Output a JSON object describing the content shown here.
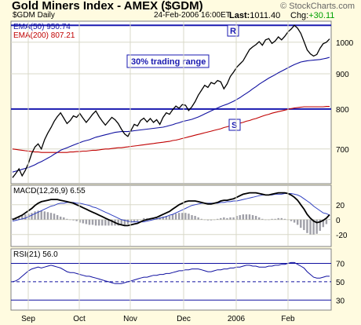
{
  "header": {
    "title": "Gold Miners Index - AMEX ($GDM)",
    "copyright": "© StockCharts.com",
    "symbol_label": "$GDM Daily",
    "date": "24-Feb-2006 16:00ET",
    "last_label": "Last:",
    "last_value": "1011.40",
    "chg_label": "Chg:",
    "chg_value": "+30.11"
  },
  "legend": {
    "ema50": "EMA(50) 950.74",
    "ema200": "EMA(200) 807.21"
  },
  "annotations": {
    "r_label": "R",
    "s_label": "S",
    "range_label": "30% trading range"
  },
  "colors": {
    "background": "#fffbe0",
    "plot_bg": "#ffffff",
    "grid": "#d8d8c8",
    "price": "#000000",
    "ema50": "#1010a0",
    "ema200": "#c00000",
    "support_resistance": "#1a1ab0",
    "macd": "#000000",
    "macd_signal": "#3040c0",
    "macd_hist": "#a0a0a8",
    "rsi": "#1010a0",
    "rsi_bands": "#1010a0"
  },
  "chart_data": [
    {
      "type": "line",
      "panel": "price",
      "ylim": [
        625,
        1070
      ],
      "log_scale": true,
      "y_ticks": [
        700,
        800,
        900,
        1000
      ],
      "x_labels": [
        "Sep",
        "Oct",
        "Nov",
        "Dec",
        "2006",
        "Feb"
      ],
      "horizontal_lines": [
        {
          "name": "R",
          "value": 1058
        },
        {
          "name": "S",
          "value": 800
        }
      ],
      "series": [
        {
          "name": "$GDM Daily",
          "values": [
            636,
            645,
            655,
            640,
            652,
            668,
            690,
            705,
            712,
            700,
            722,
            738,
            752,
            768,
            780,
            790,
            776,
            762,
            770,
            782,
            778,
            788,
            776,
            765,
            775,
            786,
            795,
            780,
            768,
            758,
            768,
            778,
            772,
            762,
            748,
            736,
            730,
            745,
            760,
            756,
            770,
            776,
            766,
            775,
            765,
            772,
            760,
            778,
            790,
            786,
            798,
            808,
            802,
            812,
            810,
            796,
            806,
            820,
            838,
            852,
            866,
            860,
            874,
            870,
            880,
            876,
            856,
            870,
            892,
            905,
            920,
            930,
            940,
            958,
            976,
            985,
            992,
            1002,
            990,
            1008,
            1012,
            996,
            1004,
            1018,
            1008,
            1020,
            1035,
            1045,
            1058,
            1048,
            1030,
            1002,
            975,
            962,
            955,
            960,
            980,
            995,
            1000,
            1011
          ]
        },
        {
          "name": "EMA(50)",
          "values": [
            648,
            650,
            652,
            654,
            656,
            658,
            661,
            664,
            668,
            671,
            675,
            679,
            683,
            688,
            692,
            697,
            700,
            703,
            706,
            709,
            712,
            715,
            718,
            720,
            722,
            725,
            728,
            730,
            732,
            734,
            736,
            738,
            740,
            741,
            742,
            742,
            742,
            743,
            744,
            745,
            746,
            747,
            748,
            749,
            750,
            751,
            752,
            753,
            755,
            757,
            759,
            762,
            764,
            767,
            769,
            771,
            773,
            776,
            779,
            783,
            787,
            791,
            795,
            799,
            803,
            807,
            810,
            813,
            817,
            821,
            826,
            831,
            837,
            843,
            849,
            856,
            862,
            869,
            875,
            881,
            887,
            892,
            897,
            903,
            908,
            913,
            918,
            923,
            928,
            932,
            936,
            938,
            940,
            941,
            942,
            943,
            944,
            946,
            948,
            951
          ]
        },
        {
          "name": "EMA(200)",
          "values": [
            700,
            699,
            698,
            697,
            696,
            695,
            694,
            693,
            693,
            692,
            692,
            692,
            692,
            692,
            692,
            692,
            692,
            692,
            693,
            693,
            694,
            694,
            695,
            695,
            696,
            697,
            697,
            698,
            699,
            700,
            700,
            701,
            702,
            703,
            703,
            704,
            705,
            706,
            707,
            708,
            709,
            710,
            711,
            712,
            713,
            714,
            715,
            716,
            717,
            718,
            720,
            721,
            723,
            725,
            727,
            729,
            731,
            733,
            735,
            737,
            739,
            741,
            743,
            745,
            747,
            749,
            752,
            754,
            756,
            758,
            761,
            763,
            765,
            768,
            770,
            773,
            775,
            778,
            781,
            784,
            786,
            789,
            791,
            793,
            795,
            797,
            799,
            801,
            803,
            804,
            805,
            806,
            806,
            806,
            806,
            806,
            806,
            806,
            807,
            807
          ]
        }
      ]
    },
    {
      "type": "line",
      "panel": "macd",
      "title": "MACD(12,26,9) 6.55",
      "ylim": [
        -35,
        45
      ],
      "y_ticks": [
        20,
        0,
        -20
      ],
      "series": [
        {
          "name": "MACD",
          "values": [
            0,
            2,
            4,
            6,
            9,
            12,
            15,
            19,
            22,
            24,
            25,
            26,
            27,
            27,
            27,
            26,
            25,
            24,
            23,
            22,
            20,
            18,
            16,
            14,
            12,
            10,
            8,
            6,
            4,
            2,
            0,
            -2,
            -4,
            -6,
            -7,
            -8,
            -8,
            -7,
            -6,
            -5,
            -3,
            -1,
            0,
            1,
            2,
            3,
            5,
            7,
            9,
            11,
            14,
            17,
            20,
            22,
            24,
            25,
            25,
            25,
            24,
            23,
            22,
            21,
            21,
            22,
            23,
            25,
            26,
            26,
            27,
            28,
            30,
            32,
            34,
            35,
            36,
            36,
            36,
            35,
            34,
            33,
            33,
            34,
            35,
            36,
            36,
            36,
            35,
            33,
            30,
            26,
            20,
            14,
            7,
            2,
            -2,
            -4,
            -3,
            -1,
            2,
            6.55
          ]
        },
        {
          "name": "Signal",
          "values": [
            -2,
            -1,
            0,
            1,
            2,
            4,
            6,
            8,
            10,
            12,
            14,
            16,
            18,
            19,
            21,
            22,
            22,
            23,
            23,
            23,
            22,
            22,
            21,
            20,
            19,
            17,
            16,
            14,
            12,
            10,
            8,
            6,
            4,
            2,
            0,
            -1,
            -2,
            -3,
            -3,
            -3,
            -3,
            -3,
            -2,
            -1,
            0,
            1,
            2,
            3,
            4,
            6,
            7,
            9,
            11,
            13,
            15,
            17,
            19,
            20,
            21,
            22,
            22,
            22,
            22,
            22,
            22,
            23,
            23,
            24,
            24,
            25,
            25,
            26,
            27,
            28,
            29,
            30,
            31,
            32,
            33,
            33,
            33,
            33,
            34,
            34,
            34,
            35,
            35,
            35,
            34,
            33,
            31,
            28,
            25,
            22,
            18,
            15,
            12,
            9,
            8,
            6
          ]
        }
      ]
    },
    {
      "type": "line",
      "panel": "rsi",
      "title": "RSI(21) 56.0",
      "ylim": [
        20,
        85
      ],
      "y_ticks": [
        70,
        50,
        30
      ],
      "bands": [
        70,
        50,
        30
      ],
      "series": [
        {
          "name": "RSI(21)",
          "values": [
            50,
            51,
            53,
            56,
            59,
            62,
            64,
            65,
            66,
            65,
            66,
            67,
            68,
            67,
            66,
            65,
            63,
            61,
            60,
            60,
            59,
            58,
            57,
            56,
            56,
            55,
            54,
            53,
            52,
            51,
            50,
            49,
            48,
            48,
            48,
            49,
            50,
            51,
            52,
            53,
            54,
            55,
            55,
            56,
            57,
            57,
            58,
            58,
            59,
            59,
            60,
            61,
            62,
            62,
            63,
            63,
            64,
            64,
            64,
            63,
            62,
            61,
            61,
            62,
            63,
            63,
            64,
            64,
            65,
            65,
            66,
            66,
            67,
            68,
            68,
            67,
            67,
            66,
            66,
            66,
            67,
            67,
            68,
            68,
            69,
            69,
            70,
            71,
            71,
            69,
            67,
            65,
            61,
            58,
            55,
            54,
            54,
            55,
            56,
            56
          ]
        }
      ]
    }
  ]
}
